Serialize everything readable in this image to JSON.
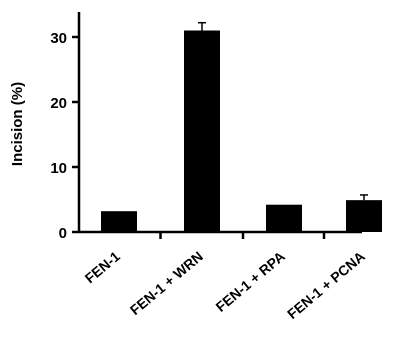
{
  "chart_data": {
    "type": "bar",
    "title": "",
    "xlabel": "",
    "ylabel": "Incision (%)",
    "categories": [
      "FEN-1",
      "FEN-1 + WRN",
      "FEN-1 + RPA",
      "FEN-1 + PCNA"
    ],
    "values": [
      3.2,
      31.0,
      4.2,
      4.9
    ],
    "errors": [
      0,
      1.2,
      0,
      0.8
    ],
    "ylim": [
      0,
      33
    ],
    "yticks": [
      0,
      10,
      20,
      30
    ],
    "grid": false,
    "legend": "none",
    "bar_color": "#000000"
  }
}
